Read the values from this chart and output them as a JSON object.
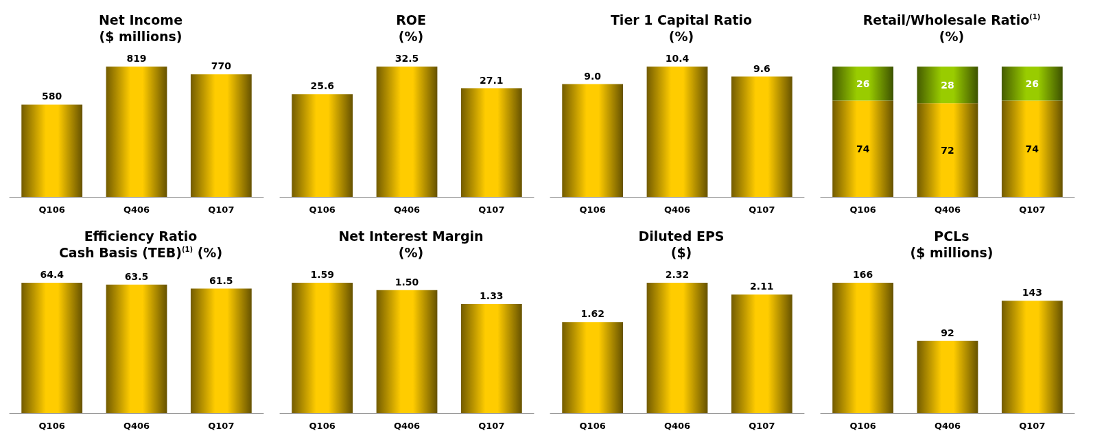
{
  "chart_data": [
    {
      "type": "bar",
      "title": "Net Income\n($ millions)",
      "categories": [
        "Q106",
        "Q406",
        "Q107"
      ],
      "values": [
        580,
        819,
        770
      ],
      "color": "#ffcc00",
      "data_labels": true
    },
    {
      "type": "bar",
      "title": "ROE\n(%)",
      "categories": [
        "Q106",
        "Q406",
        "Q107"
      ],
      "values": [
        25.6,
        32.5,
        27.1
      ],
      "color": "#ffcc00",
      "data_labels": true
    },
    {
      "type": "bar",
      "title": "Tier 1 Capital Ratio\n(%)",
      "categories": [
        "Q106",
        "Q406",
        "Q107"
      ],
      "values": [
        9.0,
        10.4,
        9.6
      ],
      "value_labels": [
        "9.0",
        "10.4",
        "9.6"
      ],
      "color": "#ffcc00"
    },
    {
      "type": "bar",
      "title": "Retail/Wholesale Ratio$^{(1)}$\n(%)",
      "categories": [
        "Q106",
        "Q406",
        "Q107"
      ],
      "stacked": true,
      "data_labels": true,
      "series": [
        {
          "color": "#ffcc00",
          "values": [
            74,
            72,
            74
          ]
        },
        {
          "color": "#99cc00",
          "values": [
            26,
            28,
            26
          ]
        }
      ]
    },
    {
      "type": "bar",
      "title": "Efficiency Ratio\nCash Basis (TEB)$^{(1)}$ (%)",
      "categories": [
        "Q106",
        "Q406",
        "Q107"
      ],
      "values": [
        64.4,
        63.5,
        61.5
      ],
      "color": "#ffcc00",
      "data_labels": true
    },
    {
      "type": "bar",
      "title": "Net Interest Margin\n(%)",
      "categories": [
        "Q106",
        "Q406",
        "Q107"
      ],
      "values": [
        1.59,
        1.5,
        1.33
      ],
      "value_labels": [
        "1.59",
        "1.50",
        "1.33"
      ],
      "color": "#ffcc00"
    },
    {
      "type": "bar",
      "title": "Diluted EPS\n($)",
      "categories": [
        "Q106",
        "Q406",
        "Q107"
      ],
      "values": [
        1.62,
        2.32,
        2.11
      ],
      "color": "#ffcc00",
      "data_labels": true
    },
    {
      "type": "bar",
      "title": "PCLs\n($ millions)",
      "categories": [
        "Q106",
        "Q406",
        "Q107"
      ],
      "values": [
        166,
        92,
        143
      ],
      "color": "#ffcc00",
      "data_labels": true
    }
  ]
}
